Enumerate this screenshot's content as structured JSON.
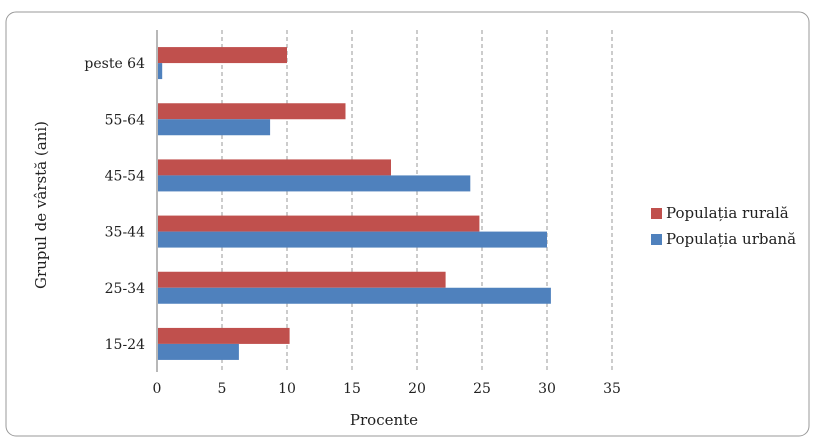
{
  "chart_data": {
    "type": "bar",
    "orientation": "horizontal",
    "categories": [
      "peste 64",
      "55-64",
      "45-54",
      "35-44",
      "25-34",
      "15-24"
    ],
    "series": [
      {
        "name": "Populația rurală",
        "color": "#c0504d",
        "values": [
          10,
          14.5,
          18,
          24.8,
          22.2,
          10.2
        ]
      },
      {
        "name": "Populația urbană",
        "color": "#4f81bd",
        "values": [
          0.4,
          8.7,
          24.1,
          30,
          30.3,
          6.3
        ]
      }
    ],
    "xlabel": "Procente",
    "ylabel": "Grupul de vârstă (ani)",
    "xlim": [
      0,
      35
    ],
    "xticks": [
      0,
      5,
      10,
      15,
      20,
      25,
      30,
      35
    ],
    "grid": "vertical-dashed",
    "legend_position": "right"
  }
}
